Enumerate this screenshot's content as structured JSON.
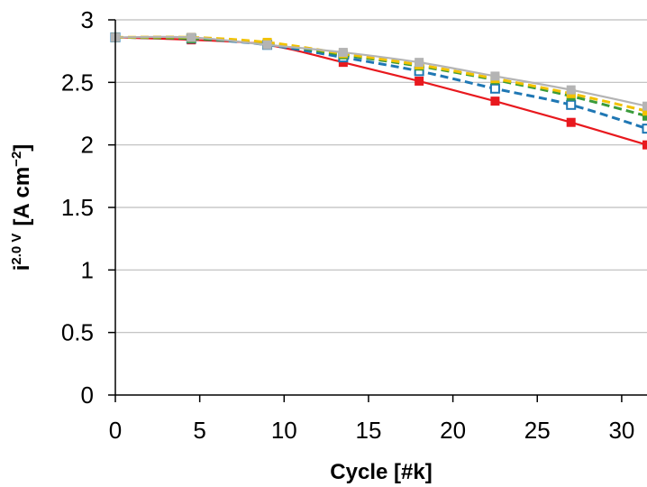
{
  "chart_data": {
    "type": "line",
    "xlabel": "Cycle [#k]",
    "ylabel": {
      "main": "i",
      "superscript": "2.0 V",
      "unit_prefix": "[A cm",
      "unit_exp": "−2",
      "unit_suffix": "]"
    },
    "xlim": [
      0,
      31.5
    ],
    "ylim": [
      0,
      3
    ],
    "xticks": [
      0,
      5,
      10,
      15,
      20,
      25,
      30
    ],
    "xtick_labels": [
      "0",
      "5",
      "10",
      "15",
      "20",
      "25",
      "30"
    ],
    "yticks": [
      0,
      0.5,
      1,
      1.5,
      2,
      2.5,
      3
    ],
    "ytick_labels": [
      "0",
      "0.5",
      "1",
      "1.5",
      "2",
      "2.5",
      "3"
    ],
    "grid": "horizontal",
    "legend": "none",
    "x": [
      0,
      4.5,
      9,
      13.5,
      18,
      22.5,
      27,
      31.5
    ],
    "series": [
      {
        "color": "#e8191e",
        "line": "solid",
        "marker": "filled-square",
        "values": [
          2.86,
          2.84,
          2.8,
          2.66,
          2.51,
          2.35,
          2.18,
          2.0
        ]
      },
      {
        "color": "#1f77b4",
        "line": "dashed",
        "marker": "open-square",
        "values": [
          2.86,
          2.85,
          2.8,
          2.7,
          2.59,
          2.45,
          2.32,
          2.13
        ]
      },
      {
        "color": "#3a9b3a",
        "line": "dashed",
        "marker": "filled-square",
        "values": [
          2.86,
          2.85,
          2.81,
          2.72,
          2.63,
          2.52,
          2.39,
          2.23
        ]
      },
      {
        "color": "#f2c200",
        "line": "dashed",
        "marker": "filled-square",
        "values": [
          2.86,
          2.86,
          2.82,
          2.73,
          2.64,
          2.53,
          2.41,
          2.27
        ]
      },
      {
        "color": "#b4b4b4",
        "line": "solid",
        "marker": "filled-square",
        "values": [
          2.86,
          2.86,
          2.8,
          2.74,
          2.66,
          2.55,
          2.44,
          2.31
        ]
      }
    ]
  }
}
